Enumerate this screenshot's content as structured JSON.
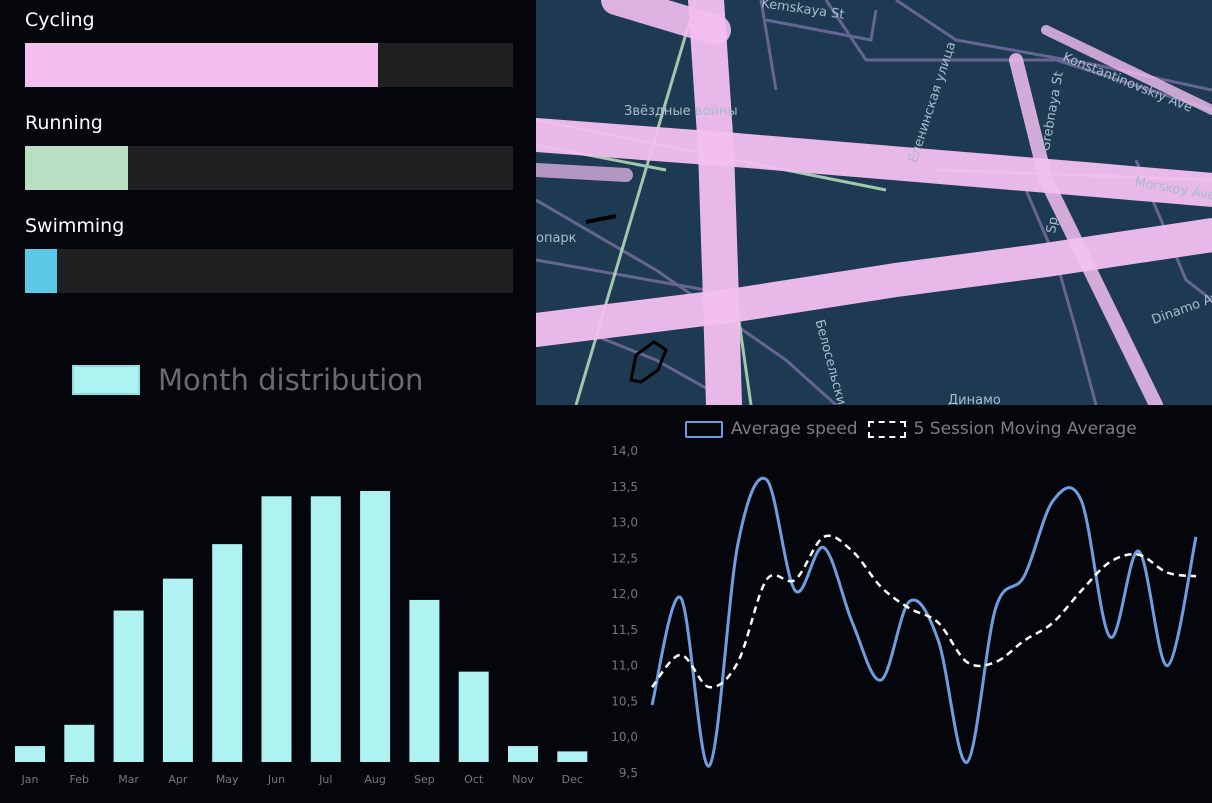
{
  "sports": {
    "items": [
      {
        "label": "Cycling",
        "fraction": 0.723,
        "color": "#f2bff0"
      },
      {
        "label": "Running",
        "fraction": 0.212,
        "color": "#b8e0c2"
      },
      {
        "label": "Swimming",
        "fraction": 0.066,
        "color": "#5bc8e6"
      }
    ]
  },
  "map": {
    "streets": [
      "Kemskaya St",
      "Звёздные войны",
      "Еленинская улица",
      "Grebnaya St",
      "Konstantinovskiy Ave",
      "Morskoy Ave",
      "опарк",
      "Белосельский",
      "Dinamo Ave",
      "Динамо",
      "Sp"
    ],
    "colors": {
      "water": "#1e3a52",
      "cycling_route": "#f2bff0",
      "running_route": "#b8e0c2",
      "road": "#6d6a98"
    }
  },
  "chart_data": [
    {
      "type": "bar",
      "legend": "Month distribution",
      "categories": [
        "Jan",
        "Feb",
        "Mar",
        "Apr",
        "May",
        "Jun",
        "Jul",
        "Aug",
        "Sep",
        "Oct",
        "Nov",
        "Dec"
      ],
      "values": [
        6,
        14,
        57,
        69,
        82,
        100,
        100,
        102,
        61,
        34,
        6,
        4
      ],
      "ylim": [
        0,
        105
      ],
      "color": "#aef2f2",
      "grid": false
    },
    {
      "type": "line",
      "series": [
        {
          "name": "Average speed",
          "color": "#6f9ee0",
          "style": "solid",
          "values": [
            10.45,
            11.95,
            9.6,
            12.7,
            13.6,
            12.05,
            12.65,
            11.6,
            10.8,
            11.9,
            11.35,
            9.65,
            11.8,
            12.25,
            13.3,
            13.3,
            11.4,
            12.6,
            11.0,
            12.8
          ]
        },
        {
          "name": "5 Session Moving Average",
          "color": "#ffffff",
          "style": "dashed",
          "values": [
            10.7,
            11.15,
            10.7,
            11.05,
            12.2,
            12.2,
            12.8,
            12.6,
            12.1,
            11.8,
            11.6,
            11.05,
            11.05,
            11.35,
            11.6,
            12.05,
            12.45,
            12.55,
            12.3,
            12.25
          ]
        }
      ],
      "ylim": [
        9.5,
        14.0
      ],
      "yticks": [
        "14,0",
        "13,5",
        "13,0",
        "12,5",
        "12,0",
        "11,5",
        "11,0",
        "10,5",
        "10,0",
        "9,5"
      ],
      "legend_position": "top",
      "grid": false
    }
  ]
}
